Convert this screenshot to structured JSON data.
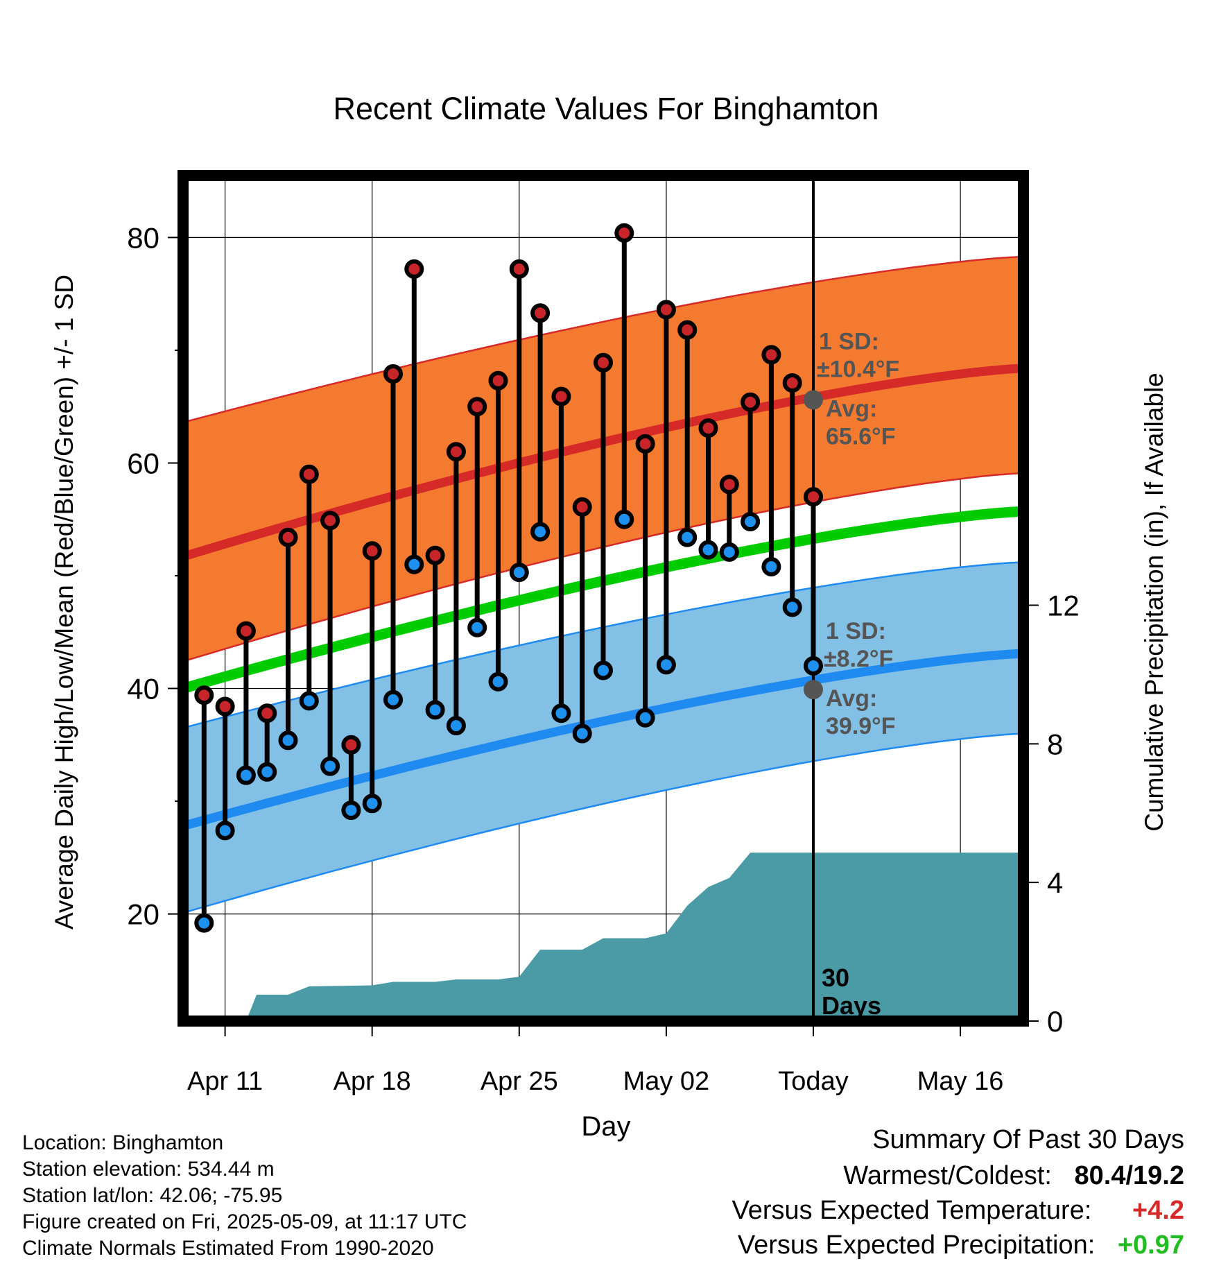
{
  "chart_data": {
    "type": "line",
    "title": "Recent Climate Values For Binghamton",
    "xlabel": "Day",
    "ylabel": "Average Daily High/Low/Mean (Red/Blue/Green) +/- 1 SD",
    "y2label": "Cumulative Precipitation (in), If Available",
    "ylim": [
      10.5,
      85.5
    ],
    "y2lim": [
      0,
      24.4
    ],
    "xlim": [
      "Apr 09",
      "May 19"
    ],
    "x_ticks": [
      {
        "date": "Apr 11",
        "label": "Apr 11"
      },
      {
        "date": "Apr 18",
        "label": "Apr 18"
      },
      {
        "date": "Apr 25",
        "label": "Apr 25"
      },
      {
        "date": "May 02",
        "label": "May 02"
      },
      {
        "date": "May 09",
        "label": "Today"
      },
      {
        "date": "May 16",
        "label": "May 16"
      }
    ],
    "y_ticks": [
      20,
      40,
      60,
      80
    ],
    "y2_ticks": [
      0,
      4,
      8,
      12
    ],
    "grid": true,
    "today_marker": {
      "date": "May 09",
      "label_line1": "30",
      "label_line2": "Days"
    },
    "high_normal": {
      "dates": [
        "Apr 09",
        "May 19"
      ],
      "avg": [
        51.7,
        68.4
      ],
      "upper": [
        63.6,
        78.3
      ],
      "lower": [
        42.4,
        59.1
      ],
      "sd_label": "1 SD:",
      "sd_value": "±10.4°F",
      "avg_label": "Avg:",
      "avg_value": "65.6°F",
      "today_avg": 65.6,
      "colors": {
        "band": "#f47a30",
        "line": "#d62a28"
      }
    },
    "low_normal": {
      "dates": [
        "Apr 09",
        "May 19"
      ],
      "avg": [
        27.8,
        43.1
      ],
      "upper": [
        36.5,
        51.2
      ],
      "lower": [
        20.1,
        36.0
      ],
      "sd_label": "1 SD:",
      "sd_value": "±8.2°F",
      "avg_label": "Avg:",
      "avg_value": "39.9°F",
      "today_avg": 39.9,
      "colors": {
        "band": "#82c0e6",
        "line": "#1f8af0"
      }
    },
    "mean_normal": {
      "dates": [
        "Apr 09",
        "May 19"
      ],
      "values": [
        40.0,
        55.7
      ],
      "color": "#00cc00"
    },
    "series": [
      {
        "name": "High",
        "dates": [
          "Apr 10",
          "Apr 11",
          "Apr 12",
          "Apr 13",
          "Apr 14",
          "Apr 15",
          "Apr 16",
          "Apr 17",
          "Apr 18",
          "Apr 19",
          "Apr 20",
          "Apr 21",
          "Apr 22",
          "Apr 23",
          "Apr 24",
          "Apr 25",
          "Apr 26",
          "Apr 27",
          "Apr 28",
          "Apr 29",
          "Apr 30",
          "May 01",
          "May 02",
          "May 03",
          "May 04",
          "May 05",
          "May 06",
          "May 07",
          "May 08",
          "May 09"
        ],
        "values": [
          39.4,
          38.4,
          45.1,
          37.8,
          53.4,
          59.0,
          54.9,
          35.0,
          52.2,
          67.9,
          77.2,
          51.8,
          61.0,
          65.0,
          67.3,
          77.2,
          73.3,
          65.9,
          56.1,
          68.9,
          80.4,
          61.7,
          73.6,
          71.8,
          63.1,
          58.1,
          65.4,
          69.6,
          67.1,
          57.0
        ],
        "color": "#c8252a"
      },
      {
        "name": "Low",
        "dates": [
          "Apr 10",
          "Apr 11",
          "Apr 12",
          "Apr 13",
          "Apr 14",
          "Apr 15",
          "Apr 16",
          "Apr 17",
          "Apr 18",
          "Apr 19",
          "Apr 20",
          "Apr 21",
          "Apr 22",
          "Apr 23",
          "Apr 24",
          "Apr 25",
          "Apr 26",
          "Apr 27",
          "Apr 28",
          "Apr 29",
          "Apr 30",
          "May 01",
          "May 02",
          "May 03",
          "May 04",
          "May 05",
          "May 06",
          "May 07",
          "May 08",
          "May 09"
        ],
        "values": [
          19.2,
          27.4,
          32.3,
          32.6,
          35.4,
          38.9,
          33.1,
          29.2,
          29.8,
          39.0,
          51.0,
          38.1,
          36.7,
          45.4,
          40.6,
          50.3,
          53.9,
          37.8,
          36.0,
          41.6,
          55.0,
          37.4,
          42.1,
          53.4,
          52.3,
          52.1,
          54.8,
          50.8,
          47.2,
          42.0
        ],
        "color": "#1e90ee"
      }
    ],
    "precipitation": {
      "name": "Cumulative Precipitation",
      "color": "#4a9ba6",
      "points": [
        {
          "date": "Apr 11",
          "value": 0.0
        },
        {
          "date": "Apr 12",
          "value": 0.0
        },
        {
          "date": "Apr 12.5",
          "value": 0.76
        },
        {
          "date": "Apr 14",
          "value": 0.76
        },
        {
          "date": "Apr 15",
          "value": 1.0
        },
        {
          "date": "Apr 18",
          "value": 1.03
        },
        {
          "date": "Apr 19",
          "value": 1.13
        },
        {
          "date": "Apr 21",
          "value": 1.13
        },
        {
          "date": "Apr 22",
          "value": 1.2
        },
        {
          "date": "Apr 24",
          "value": 1.2
        },
        {
          "date": "Apr 25",
          "value": 1.28
        },
        {
          "date": "Apr 26",
          "value": 2.06
        },
        {
          "date": "Apr 28",
          "value": 2.06
        },
        {
          "date": "Apr 29",
          "value": 2.39
        },
        {
          "date": "May 01",
          "value": 2.39
        },
        {
          "date": "May 02",
          "value": 2.53
        },
        {
          "date": "May 03",
          "value": 3.33
        },
        {
          "date": "May 04",
          "value": 3.87
        },
        {
          "date": "May 05",
          "value": 4.13
        },
        {
          "date": "May 06",
          "value": 4.86
        },
        {
          "date": "May 07",
          "value": 4.86
        },
        {
          "date": "May 19",
          "value": 4.86
        }
      ]
    }
  },
  "info": {
    "location": "Location: Binghamton",
    "elevation": "Station elevation: 534.44 m",
    "latlon": "Station lat/lon: 42.06; -75.95",
    "created": "Figure created on Fri, 2025-05-09, at 11:17 UTC",
    "normals": "Climate Normals Estimated From 1990-2020"
  },
  "summary": {
    "title": "Summary Of Past 30 Days",
    "extremes_label": "Warmest/Coldest:",
    "extremes_value": "80.4/19.2",
    "temp_label": "Versus Expected Temperature:",
    "temp_value": "+4.2",
    "precip_label": "Versus Expected Precipitation:",
    "precip_value": "+0.97",
    "colors": {
      "temp": "#d62a28",
      "precip": "#22bb22"
    }
  }
}
